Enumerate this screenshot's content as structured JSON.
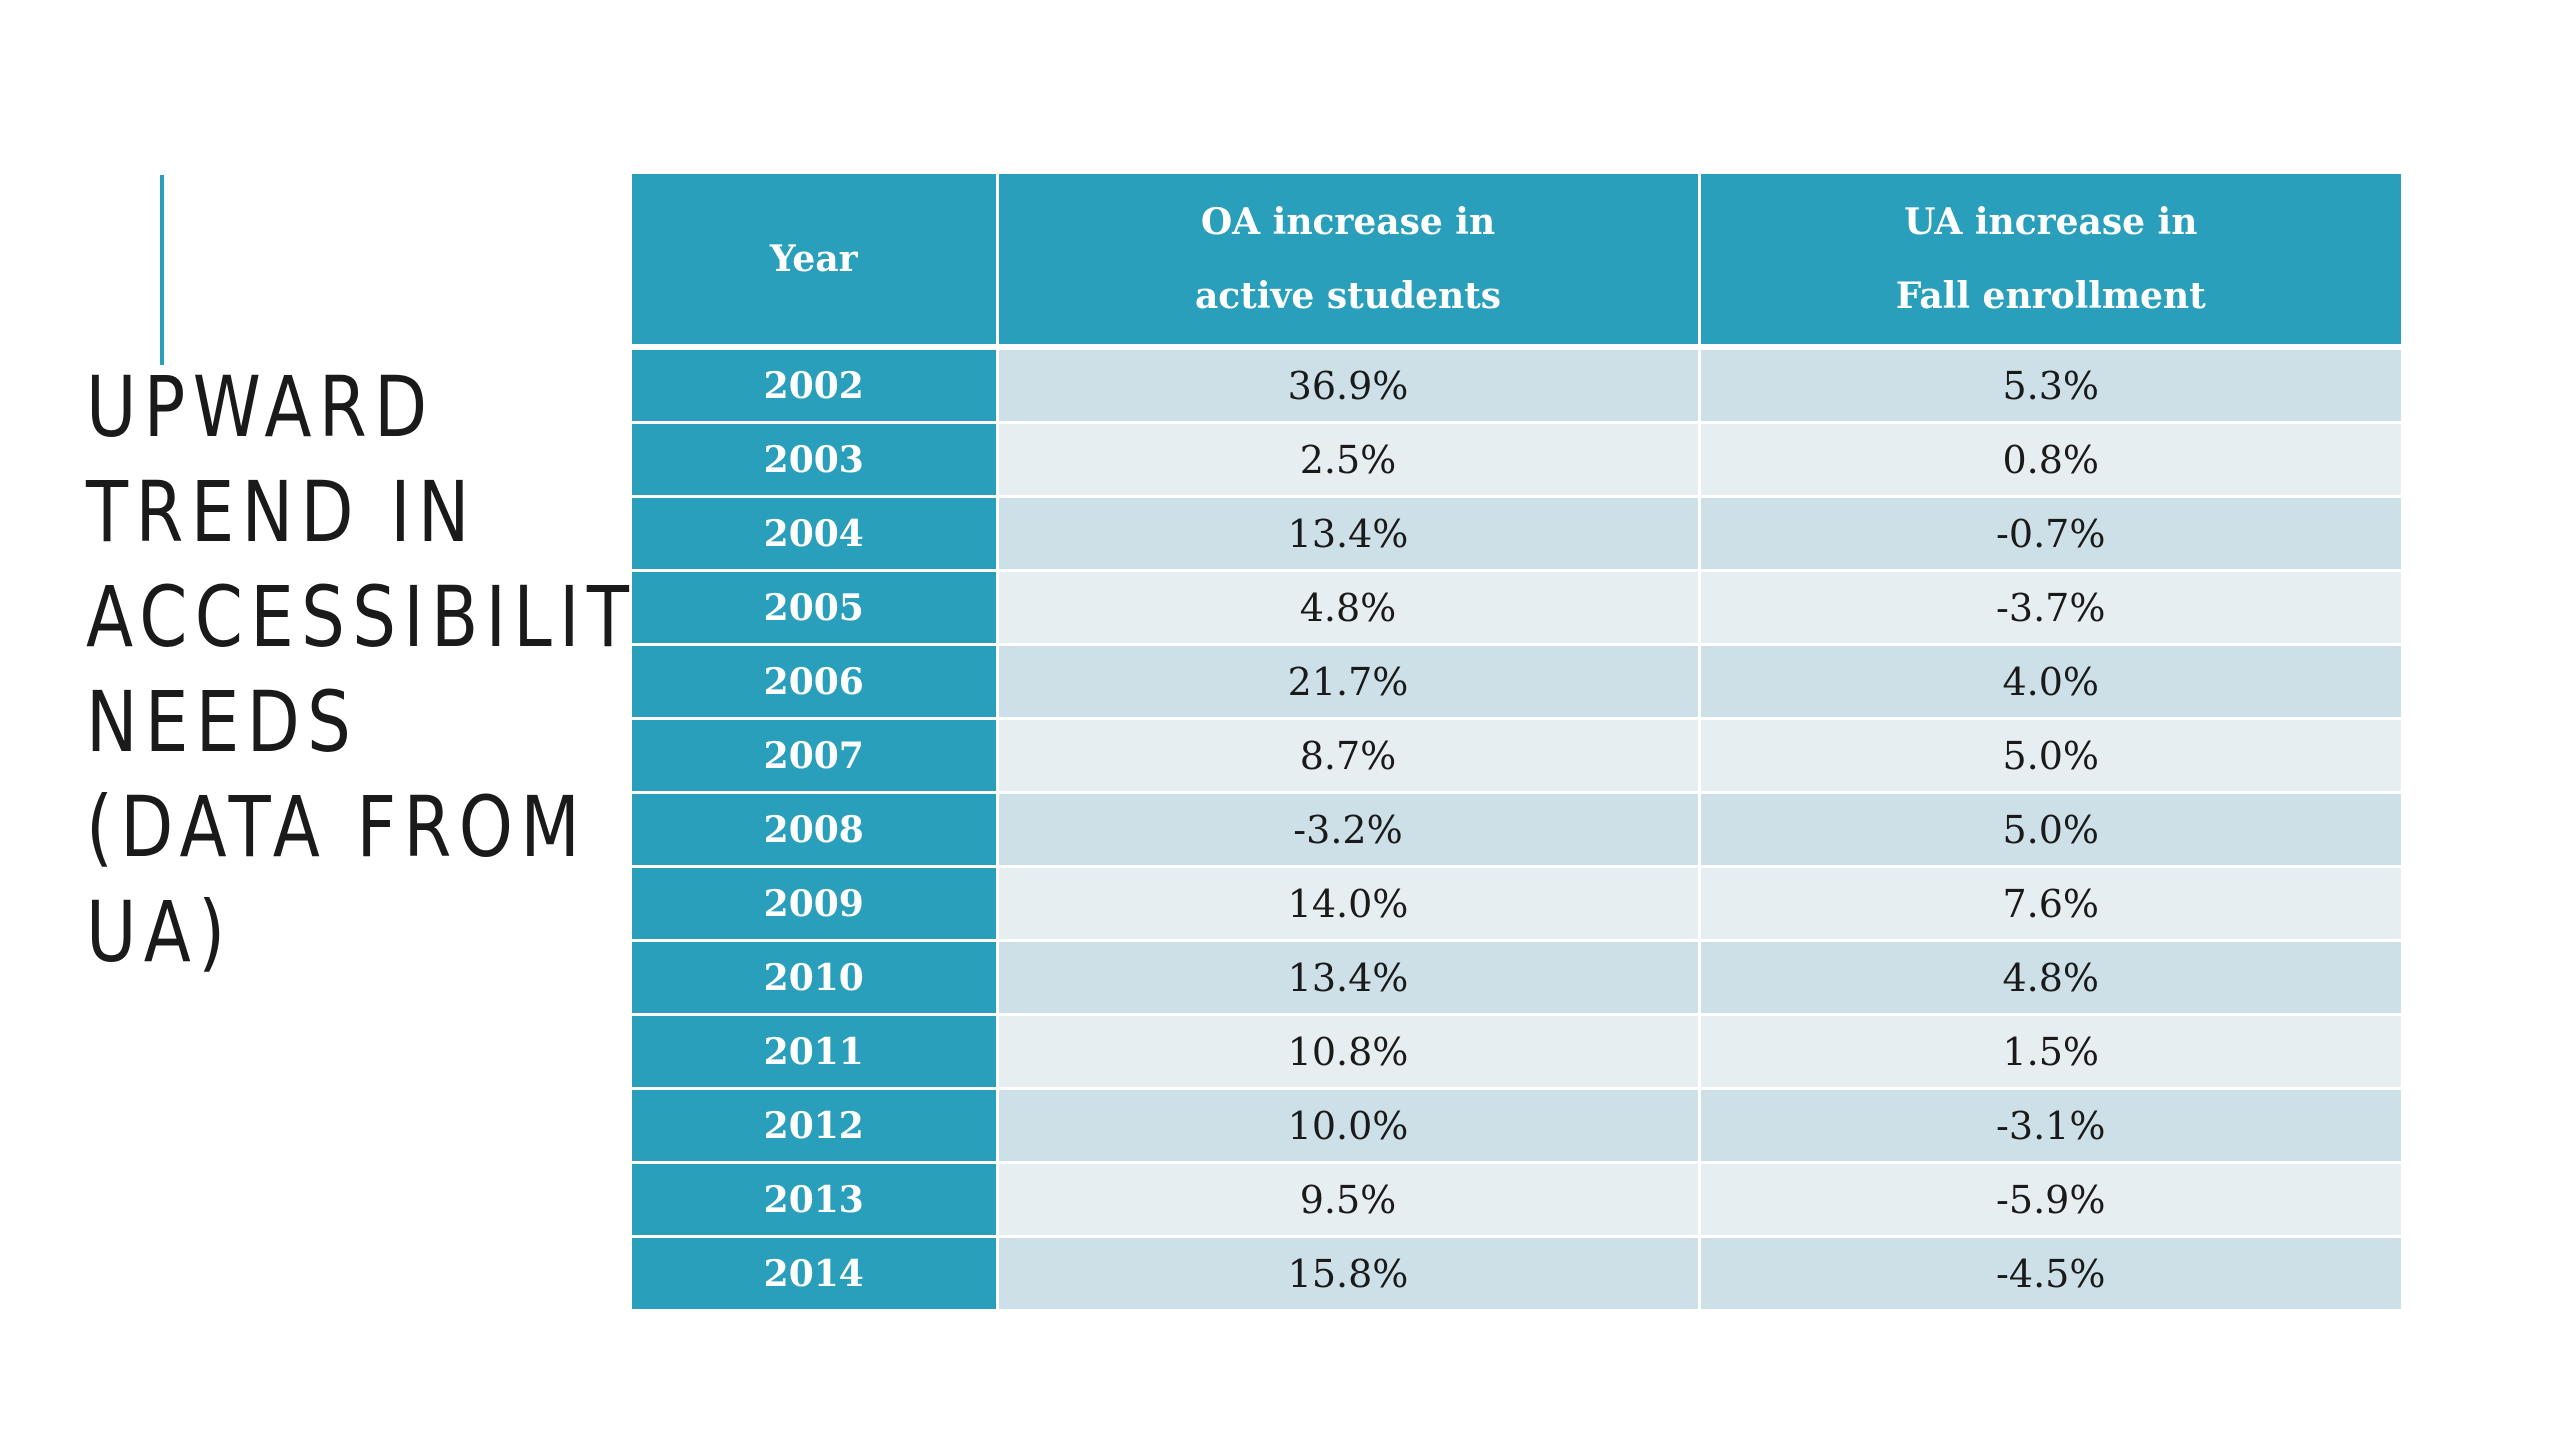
{
  "slide": {
    "title_lines": [
      "UPWARD",
      "TREND IN",
      "ACCESSIBILITY",
      "NEEDS",
      "(DATA FROM",
      "UA)"
    ],
    "accent_color": "#2a9fbc"
  },
  "table": {
    "header": {
      "year": "Year",
      "oa_line1": "OA increase in",
      "oa_line2": "active students",
      "ua_line1": "UA increase in",
      "ua_line2": "Fall enrollment"
    },
    "rows": [
      {
        "year": "2002",
        "oa": "36.9%",
        "ua": "5.3%"
      },
      {
        "year": "2003",
        "oa": "2.5%",
        "ua": "0.8%"
      },
      {
        "year": "2004",
        "oa": "13.4%",
        "ua": "-0.7%"
      },
      {
        "year": "2005",
        "oa": "4.8%",
        "ua": "-3.7%"
      },
      {
        "year": "2006",
        "oa": "21.7%",
        "ua": "4.0%"
      },
      {
        "year": "2007",
        "oa": "8.7%",
        "ua": "5.0%"
      },
      {
        "year": "2008",
        "oa": "-3.2%",
        "ua": "5.0%"
      },
      {
        "year": "2009",
        "oa": "14.0%",
        "ua": "7.6%"
      },
      {
        "year": "2010",
        "oa": "13.4%",
        "ua": "4.8%"
      },
      {
        "year": "2011",
        "oa": "10.8%",
        "ua": "1.5%"
      },
      {
        "year": "2012",
        "oa": "10.0%",
        "ua": "-3.1%"
      },
      {
        "year": "2013",
        "oa": "9.5%",
        "ua": "-5.9%"
      },
      {
        "year": "2014",
        "oa": "15.8%",
        "ua": "-4.5%"
      }
    ],
    "colors": {
      "header_bg": "#2a9fbc",
      "row_band_dark": "#cde0e8",
      "row_band_light": "#e7eef2"
    }
  }
}
